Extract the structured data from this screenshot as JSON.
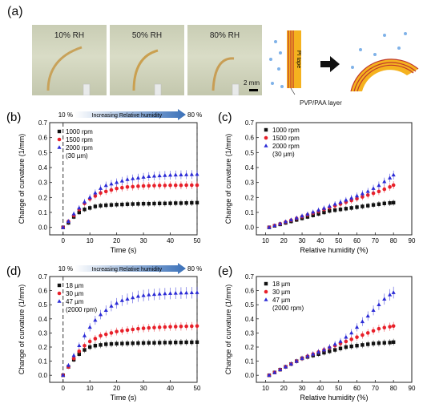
{
  "panel_a": {
    "label": "(a)",
    "photos": [
      "10% RH",
      "50% RH",
      "80% RH"
    ],
    "scale_bar": "2 mm",
    "pi_tape": "PI tape",
    "layer_label": "PVP/PAA layer"
  },
  "colors": {
    "black": "#111111",
    "red": "#e8202a",
    "blue": "#2b2bd6",
    "arrow": "#3a70b8",
    "tape": "#f5b21f"
  },
  "chart_data": [
    {
      "id": "b",
      "label": "(b)",
      "type": "line",
      "xlabel": "Time (s)",
      "ylabel": "Change of curvature (1/mm)",
      "xlim": [
        -5,
        50
      ],
      "ylim": [
        -0.05,
        0.7
      ],
      "xticks": [
        0,
        10,
        20,
        30,
        40,
        50
      ],
      "yticks": [
        0.0,
        0.1,
        0.2,
        0.3,
        0.4,
        0.5,
        0.6,
        0.7
      ],
      "banner": {
        "start": "10 %",
        "text": "Increasing Relative humidity",
        "end": "80 %"
      },
      "legend_note": "(30 µm)",
      "x": [
        0,
        2,
        4,
        6,
        8,
        10,
        12,
        14,
        16,
        18,
        20,
        22,
        24,
        26,
        28,
        30,
        32,
        34,
        36,
        38,
        40,
        42,
        44,
        46,
        48,
        50
      ],
      "series": [
        {
          "name": "1000 rpm",
          "color": "#111111",
          "marker": "square",
          "values": [
            0.0,
            0.03,
            0.07,
            0.1,
            0.12,
            0.13,
            0.14,
            0.145,
            0.148,
            0.15,
            0.152,
            0.153,
            0.155,
            0.156,
            0.157,
            0.158,
            0.158,
            0.159,
            0.16,
            0.16,
            0.161,
            0.162,
            0.162,
            0.163,
            0.164,
            0.165
          ]
        },
        {
          "name": "1500 rpm",
          "color": "#e8202a",
          "marker": "circle",
          "values": [
            0.0,
            0.04,
            0.08,
            0.12,
            0.16,
            0.19,
            0.21,
            0.23,
            0.24,
            0.25,
            0.26,
            0.265,
            0.27,
            0.272,
            0.275,
            0.277,
            0.278,
            0.279,
            0.28,
            0.28,
            0.281,
            0.281,
            0.281,
            0.282,
            0.282,
            0.282
          ]
        },
        {
          "name": "2000 rpm",
          "color": "#2b2bd6",
          "marker": "triangle",
          "values": [
            0.0,
            0.04,
            0.09,
            0.13,
            0.17,
            0.2,
            0.23,
            0.26,
            0.28,
            0.29,
            0.3,
            0.31,
            0.32,
            0.325,
            0.33,
            0.335,
            0.34,
            0.343,
            0.345,
            0.347,
            0.349,
            0.35,
            0.351,
            0.352,
            0.353,
            0.354
          ]
        }
      ]
    },
    {
      "id": "c",
      "label": "(c)",
      "type": "scatter",
      "xlabel": "Relative humidity (%)",
      "ylabel": "Change of curvature (1/mm)",
      "xlim": [
        5,
        90
      ],
      "ylim": [
        -0.05,
        0.7
      ],
      "xticks": [
        10,
        20,
        30,
        40,
        50,
        60,
        70,
        80,
        90
      ],
      "yticks": [
        0.0,
        0.1,
        0.2,
        0.3,
        0.4,
        0.5,
        0.6,
        0.7
      ],
      "legend_note": "(30 µm)",
      "x": [
        12,
        15,
        18,
        21,
        24,
        27,
        30,
        33,
        36,
        39,
        42,
        45,
        48,
        51,
        54,
        57,
        60,
        63,
        66,
        69,
        72,
        75,
        78,
        80
      ],
      "series": [
        {
          "name": "1000 rpm",
          "color": "#111111",
          "marker": "square",
          "values": [
            0.0,
            0.01,
            0.02,
            0.03,
            0.04,
            0.05,
            0.06,
            0.07,
            0.08,
            0.09,
            0.1,
            0.11,
            0.115,
            0.12,
            0.125,
            0.13,
            0.135,
            0.14,
            0.145,
            0.15,
            0.155,
            0.16,
            0.163,
            0.165
          ]
        },
        {
          "name": "1500 rpm",
          "color": "#e8202a",
          "marker": "circle",
          "values": [
            0.0,
            0.012,
            0.024,
            0.036,
            0.048,
            0.06,
            0.072,
            0.084,
            0.096,
            0.108,
            0.12,
            0.132,
            0.144,
            0.156,
            0.168,
            0.18,
            0.192,
            0.204,
            0.216,
            0.228,
            0.24,
            0.255,
            0.27,
            0.282
          ]
        },
        {
          "name": "2000 rpm",
          "color": "#2b2bd6",
          "marker": "triangle",
          "values": [
            0.0,
            0.012,
            0.025,
            0.038,
            0.05,
            0.063,
            0.076,
            0.089,
            0.102,
            0.115,
            0.128,
            0.141,
            0.155,
            0.168,
            0.182,
            0.196,
            0.21,
            0.225,
            0.24,
            0.26,
            0.28,
            0.305,
            0.33,
            0.35
          ]
        }
      ]
    },
    {
      "id": "d",
      "label": "(d)",
      "type": "line",
      "xlabel": "Time (s)",
      "ylabel": "Change of curvature (1/mm)",
      "xlim": [
        -5,
        50
      ],
      "ylim": [
        -0.05,
        0.7
      ],
      "xticks": [
        0,
        10,
        20,
        30,
        40,
        50
      ],
      "yticks": [
        0.0,
        0.1,
        0.2,
        0.3,
        0.4,
        0.5,
        0.6,
        0.7
      ],
      "banner": {
        "start": "10 %",
        "text": "Increasing Relative humidity",
        "end": "80 %"
      },
      "legend_note": "(2000 rpm)",
      "x": [
        0,
        2,
        4,
        6,
        8,
        10,
        12,
        14,
        16,
        18,
        20,
        22,
        24,
        26,
        28,
        30,
        32,
        34,
        36,
        38,
        40,
        42,
        44,
        46,
        48,
        50
      ],
      "series": [
        {
          "name": "18 µm",
          "color": "#111111",
          "marker": "square",
          "values": [
            0.0,
            0.06,
            0.11,
            0.15,
            0.18,
            0.2,
            0.21,
            0.215,
            0.22,
            0.222,
            0.224,
            0.225,
            0.226,
            0.227,
            0.228,
            0.229,
            0.23,
            0.23,
            0.231,
            0.232,
            0.232,
            0.233,
            0.233,
            0.234,
            0.234,
            0.235
          ]
        },
        {
          "name": "30 µm",
          "color": "#e8202a",
          "marker": "circle",
          "values": [
            0.0,
            0.06,
            0.12,
            0.17,
            0.21,
            0.24,
            0.26,
            0.28,
            0.29,
            0.3,
            0.31,
            0.315,
            0.32,
            0.325,
            0.33,
            0.333,
            0.336,
            0.338,
            0.34,
            0.342,
            0.344,
            0.345,
            0.346,
            0.347,
            0.348,
            0.349
          ]
        },
        {
          "name": "47 µm",
          "color": "#2b2bd6",
          "marker": "triangle",
          "values": [
            0.0,
            0.07,
            0.14,
            0.21,
            0.28,
            0.34,
            0.39,
            0.43,
            0.46,
            0.49,
            0.51,
            0.53,
            0.54,
            0.55,
            0.56,
            0.565,
            0.57,
            0.573,
            0.576,
            0.578,
            0.58,
            0.582,
            0.583,
            0.584,
            0.585,
            0.586
          ]
        }
      ]
    },
    {
      "id": "e",
      "label": "(e)",
      "type": "scatter",
      "xlabel": "Relative humidity (%)",
      "ylabel": "Change of curvature (1/mm)",
      "xlim": [
        5,
        90
      ],
      "ylim": [
        -0.05,
        0.7
      ],
      "xticks": [
        10,
        20,
        30,
        40,
        50,
        60,
        70,
        80,
        90
      ],
      "yticks": [
        0.0,
        0.1,
        0.2,
        0.3,
        0.4,
        0.5,
        0.6,
        0.7
      ],
      "legend_note": "(2000 rpm)",
      "x": [
        12,
        15,
        18,
        21,
        24,
        27,
        30,
        33,
        36,
        39,
        42,
        45,
        48,
        51,
        54,
        57,
        60,
        63,
        66,
        69,
        72,
        75,
        78,
        80
      ],
      "series": [
        {
          "name": "18 µm",
          "color": "#111111",
          "marker": "square",
          "values": [
            0.0,
            0.02,
            0.04,
            0.06,
            0.08,
            0.1,
            0.12,
            0.13,
            0.14,
            0.15,
            0.16,
            0.17,
            0.18,
            0.19,
            0.2,
            0.205,
            0.21,
            0.215,
            0.22,
            0.225,
            0.228,
            0.23,
            0.232,
            0.235
          ]
        },
        {
          "name": "30 µm",
          "color": "#e8202a",
          "marker": "circle",
          "values": [
            0.0,
            0.02,
            0.04,
            0.06,
            0.08,
            0.1,
            0.12,
            0.135,
            0.15,
            0.165,
            0.18,
            0.195,
            0.21,
            0.225,
            0.24,
            0.255,
            0.27,
            0.285,
            0.3,
            0.315,
            0.33,
            0.338,
            0.344,
            0.349
          ]
        },
        {
          "name": "47 µm",
          "color": "#2b2bd6",
          "marker": "triangle",
          "values": [
            0.0,
            0.02,
            0.04,
            0.06,
            0.08,
            0.1,
            0.12,
            0.135,
            0.15,
            0.165,
            0.18,
            0.2,
            0.22,
            0.24,
            0.27,
            0.3,
            0.34,
            0.38,
            0.42,
            0.46,
            0.5,
            0.54,
            0.57,
            0.586
          ]
        }
      ]
    }
  ]
}
